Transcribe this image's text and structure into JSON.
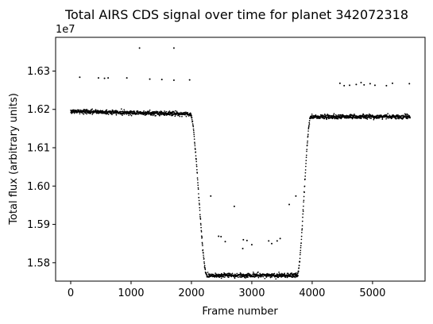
{
  "chart_data": {
    "type": "scatter",
    "title": "Total AIRS CDS signal over time for planet 342072318",
    "xlabel": "Frame number",
    "ylabel": "Total flux (arbitrary units)",
    "y_offset_label": "1e7",
    "xlim": [
      -250,
      5870
    ],
    "ylim": [
      1.5752,
      1.6388
    ],
    "x_ticks": [
      {
        "value": 0,
        "label": "0"
      },
      {
        "value": 1000,
        "label": "1000"
      },
      {
        "value": 2000,
        "label": "2000"
      },
      {
        "value": 3000,
        "label": "3000"
      },
      {
        "value": 4000,
        "label": "4000"
      },
      {
        "value": 5000,
        "label": "5000"
      }
    ],
    "y_ticks": [
      {
        "value": 1.58,
        "label": "1.58"
      },
      {
        "value": 1.59,
        "label": "1.59"
      },
      {
        "value": 1.6,
        "label": "1.60"
      },
      {
        "value": 1.61,
        "label": "1.61"
      },
      {
        "value": 1.62,
        "label": "1.62"
      },
      {
        "value": 1.63,
        "label": "1.63"
      }
    ],
    "grid": false,
    "frame_count": 5625,
    "baseline_flux": 1.6195,
    "in_transit_flux": 1.5767,
    "post_transit_flux": 1.6181,
    "ingress_frames": [
      1980,
      2260
    ],
    "egress_frames": [
      3750,
      3980
    ],
    "outliers": [
      {
        "x": 150,
        "y": 1.6284
      },
      {
        "x": 460,
        "y": 1.6282
      },
      {
        "x": 560,
        "y": 1.6281
      },
      {
        "x": 620,
        "y": 1.6282
      },
      {
        "x": 930,
        "y": 1.6282
      },
      {
        "x": 1140,
        "y": 1.636
      },
      {
        "x": 1310,
        "y": 1.6279
      },
      {
        "x": 1510,
        "y": 1.6278
      },
      {
        "x": 1710,
        "y": 1.636
      },
      {
        "x": 1710,
        "y": 1.6276
      },
      {
        "x": 1970,
        "y": 1.6277
      },
      {
        "x": 2320,
        "y": 1.5974
      },
      {
        "x": 2450,
        "y": 1.5869
      },
      {
        "x": 2490,
        "y": 1.5868
      },
      {
        "x": 2560,
        "y": 1.5855
      },
      {
        "x": 2710,
        "y": 1.5947
      },
      {
        "x": 2860,
        "y": 1.586
      },
      {
        "x": 2850,
        "y": 1.5837
      },
      {
        "x": 2920,
        "y": 1.5858
      },
      {
        "x": 3000,
        "y": 1.5847
      },
      {
        "x": 3280,
        "y": 1.5857
      },
      {
        "x": 3330,
        "y": 1.585
      },
      {
        "x": 3420,
        "y": 1.5857
      },
      {
        "x": 3470,
        "y": 1.5863
      },
      {
        "x": 3620,
        "y": 1.5952
      },
      {
        "x": 3730,
        "y": 1.5974
      },
      {
        "x": 4460,
        "y": 1.6268
      },
      {
        "x": 4530,
        "y": 1.6262
      },
      {
        "x": 4620,
        "y": 1.6263
      },
      {
        "x": 4730,
        "y": 1.6265
      },
      {
        "x": 4810,
        "y": 1.627
      },
      {
        "x": 4860,
        "y": 1.6264
      },
      {
        "x": 4960,
        "y": 1.6267
      },
      {
        "x": 5040,
        "y": 1.6263
      },
      {
        "x": 5230,
        "y": 1.6262
      },
      {
        "x": 5330,
        "y": 1.6268
      },
      {
        "x": 5610,
        "y": 1.6267
      }
    ]
  }
}
